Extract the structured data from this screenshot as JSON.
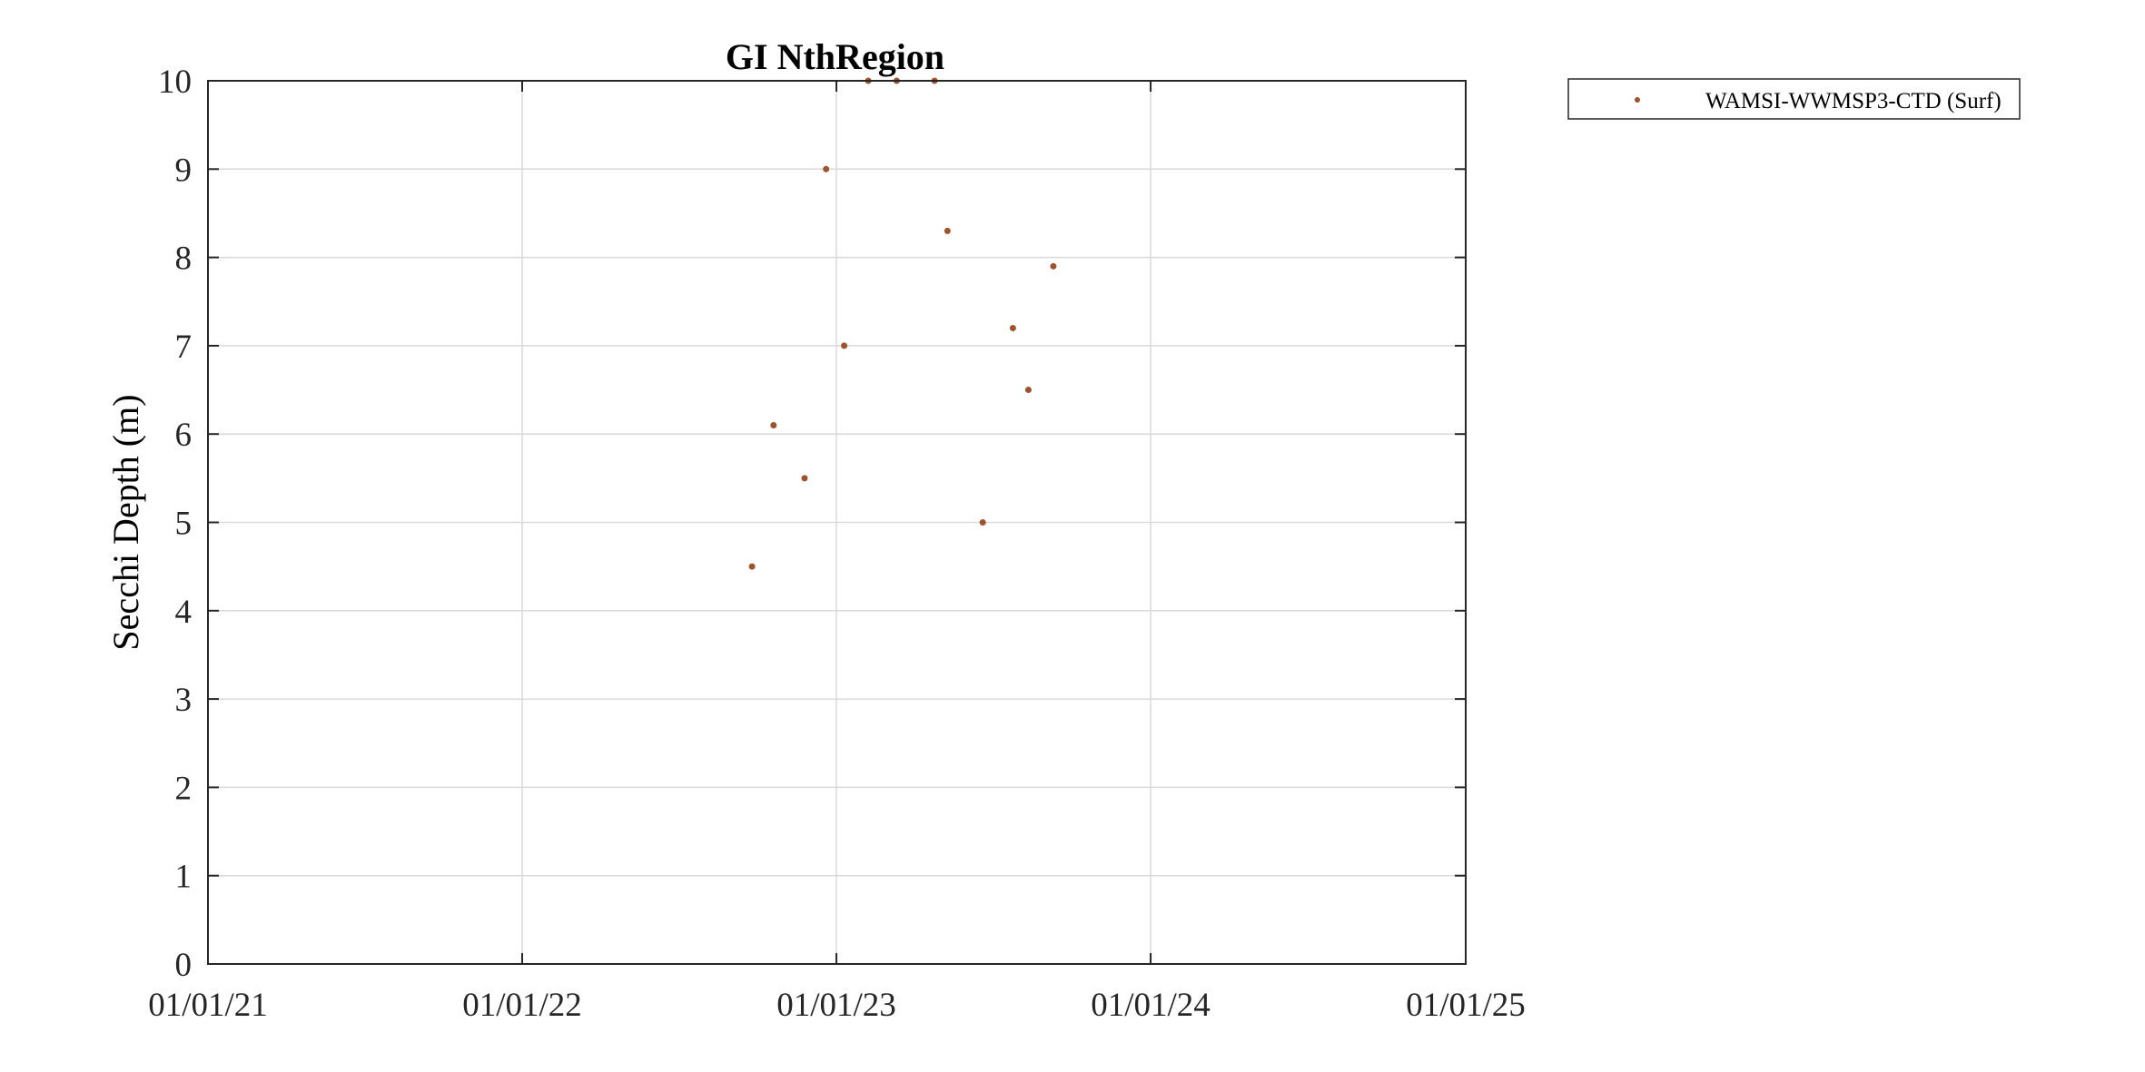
{
  "chart_data": {
    "type": "scatter",
    "title": "GI NthRegion",
    "xlabel": "",
    "ylabel": "Secchi Depth (m)",
    "xlim": [
      "2021-01-01",
      "2025-01-01"
    ],
    "ylim": [
      0,
      10
    ],
    "x_ticks": [
      "2021-01-01",
      "2022-01-01",
      "2023-01-01",
      "2024-01-01",
      "2025-01-01"
    ],
    "x_tick_labels": [
      "01/01/21",
      "01/01/22",
      "01/01/23",
      "01/01/24",
      "01/01/25"
    ],
    "y_ticks": [
      0,
      1,
      2,
      3,
      4,
      5,
      6,
      7,
      8,
      9,
      10
    ],
    "y_tick_labels": [
      "0",
      "1",
      "2",
      "3",
      "4",
      "5",
      "6",
      "7",
      "8",
      "9",
      "10"
    ],
    "grid": true,
    "legend_position": "outside-top-right",
    "series": [
      {
        "name": "WAMSI-WWMSP3-CTD (Surf)",
        "color": "#A0522D",
        "points": [
          {
            "x": "2022-09-25",
            "y": 4.5
          },
          {
            "x": "2022-10-20",
            "y": 6.1
          },
          {
            "x": "2022-11-25",
            "y": 5.5
          },
          {
            "x": "2022-12-20",
            "y": 9.0
          },
          {
            "x": "2023-01-10",
            "y": 7.0
          },
          {
            "x": "2023-02-07",
            "y": 10.0
          },
          {
            "x": "2023-03-12",
            "y": 10.0
          },
          {
            "x": "2023-04-25",
            "y": 10.0
          },
          {
            "x": "2023-05-10",
            "y": 8.3
          },
          {
            "x": "2023-06-20",
            "y": 5.0
          },
          {
            "x": "2023-07-25",
            "y": 7.2
          },
          {
            "x": "2023-08-12",
            "y": 6.5
          },
          {
            "x": "2023-09-10",
            "y": 7.9
          }
        ]
      }
    ]
  }
}
